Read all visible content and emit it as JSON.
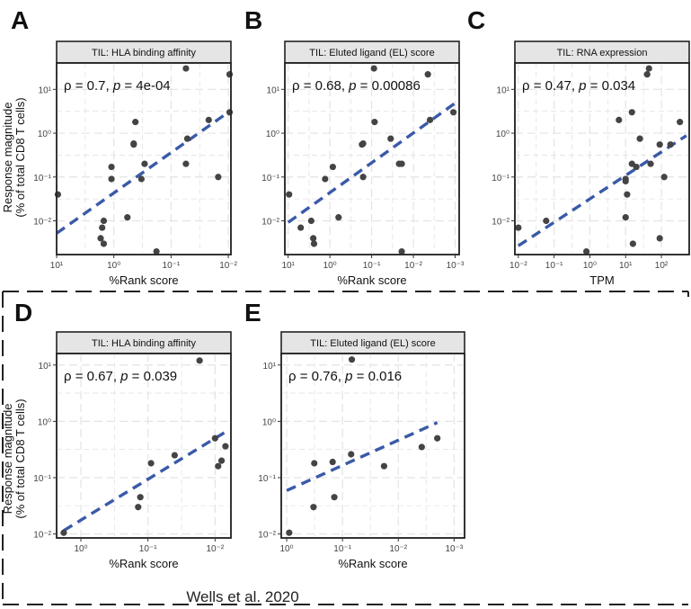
{
  "figure": {
    "footer": "Wells et al. 2020",
    "ylabel_line1": "Response magnitude",
    "ylabel_line2": "(% of total CD8 T cells)"
  },
  "colors": {
    "points": "#444444",
    "trend": "#3a5aa8",
    "strip_fill": "#e5e5e5",
    "grid": "#e3e3e3",
    "box_dash": "#222222"
  },
  "chart_data": [
    {
      "id": "A",
      "letter": "A",
      "type": "scatter",
      "title": "TIL: HLA binding affinity",
      "xlabel": "%Rank score",
      "x_reversed": true,
      "x_log": true,
      "y_log": true,
      "xlim": [
        10.0,
        0.009
      ],
      "ylim": [
        0.0017,
        40
      ],
      "xticks": [
        10,
        1,
        0.1,
        0.01
      ],
      "xtick_labels": [
        "10¹",
        "10⁰",
        "10⁻¹",
        "10⁻²"
      ],
      "yticks": [
        0.01,
        0.1,
        1,
        10
      ],
      "ytick_labels": [
        "10⁻²",
        "10⁻¹",
        "10⁰",
        "10¹"
      ],
      "rho_text": "ρ = 0.7, ",
      "p_label": "p",
      "p_text": " = 4e-04",
      "fit": {
        "x": [
          10,
          0.01
        ],
        "y": [
          0.0052,
          3.0
        ]
      },
      "points": [
        {
          "x": 9.5,
          "y": 0.04
        },
        {
          "x": 1.1,
          "y": 0.17
        },
        {
          "x": 1.1,
          "y": 0.09
        },
        {
          "x": 1.7,
          "y": 0.004
        },
        {
          "x": 1.6,
          "y": 0.007
        },
        {
          "x": 1.5,
          "y": 0.01
        },
        {
          "x": 1.5,
          "y": 0.003
        },
        {
          "x": 0.58,
          "y": 0.012
        },
        {
          "x": 0.45,
          "y": 0.55
        },
        {
          "x": 0.45,
          "y": 0.58
        },
        {
          "x": 0.42,
          "y": 1.8
        },
        {
          "x": 0.33,
          "y": 0.09
        },
        {
          "x": 0.29,
          "y": 0.2
        },
        {
          "x": 0.18,
          "y": 0.002
        },
        {
          "x": 0.055,
          "y": 30
        },
        {
          "x": 0.055,
          "y": 0.2
        },
        {
          "x": 0.052,
          "y": 0.75
        },
        {
          "x": 0.022,
          "y": 2.0
        },
        {
          "x": 0.015,
          "y": 0.1
        },
        {
          "x": 0.0095,
          "y": 22
        },
        {
          "x": 0.0095,
          "y": 3.0
        }
      ]
    },
    {
      "id": "B",
      "letter": "B",
      "type": "scatter",
      "title": "TIL: Eluted ligand (EL) score",
      "xlabel": "%Rank score",
      "x_reversed": true,
      "x_log": true,
      "y_log": true,
      "xlim": [
        12,
        0.0008
      ],
      "ylim": [
        0.0017,
        40
      ],
      "xticks": [
        10,
        1,
        0.1,
        0.01,
        0.001
      ],
      "xtick_labels": [
        "10¹",
        "10⁰",
        "10⁻¹",
        "10⁻²",
        "10⁻³"
      ],
      "yticks": [
        0.01,
        0.1,
        1,
        10
      ],
      "ytick_labels": [
        "10⁻²",
        "10⁻¹",
        "10⁰",
        "10¹"
      ],
      "rho_text": "ρ = 0.68, ",
      "p_label": "p",
      "p_text": " = 0.00086",
      "fit": {
        "x": [
          10,
          0.0009
        ],
        "y": [
          0.0092,
          5.2
        ]
      },
      "points": [
        {
          "x": 9.5,
          "y": 0.04
        },
        {
          "x": 5.0,
          "y": 0.007
        },
        {
          "x": 2.8,
          "y": 0.01
        },
        {
          "x": 2.5,
          "y": 0.004
        },
        {
          "x": 2.4,
          "y": 0.003
        },
        {
          "x": 1.3,
          "y": 0.09
        },
        {
          "x": 0.85,
          "y": 0.17
        },
        {
          "x": 0.62,
          "y": 0.012
        },
        {
          "x": 0.17,
          "y": 0.55
        },
        {
          "x": 0.16,
          "y": 0.58
        },
        {
          "x": 0.16,
          "y": 0.1
        },
        {
          "x": 0.088,
          "y": 30
        },
        {
          "x": 0.085,
          "y": 1.8
        },
        {
          "x": 0.035,
          "y": 0.75
        },
        {
          "x": 0.022,
          "y": 0.2
        },
        {
          "x": 0.019,
          "y": 0.2
        },
        {
          "x": 0.019,
          "y": 0.002
        },
        {
          "x": 0.0045,
          "y": 22
        },
        {
          "x": 0.004,
          "y": 2.0
        },
        {
          "x": 0.0011,
          "y": 3.0
        }
      ]
    },
    {
      "id": "C",
      "letter": "C",
      "type": "scatter",
      "title": "TIL: RNA expression",
      "xlabel": "TPM",
      "x_reversed": false,
      "x_log": true,
      "y_log": true,
      "xlim": [
        0.008,
        600
      ],
      "ylim": [
        0.0017,
        40
      ],
      "xticks": [
        0.01,
        0.1,
        1,
        10,
        100
      ],
      "xtick_labels": [
        "10⁻²",
        "10⁻¹",
        "10⁰",
        "10¹",
        "10²"
      ],
      "yticks": [
        0.01,
        0.1,
        1,
        10
      ],
      "ytick_labels": [
        "10⁻²",
        "10⁻¹",
        "10⁰",
        "10¹"
      ],
      "rho_text": "ρ = 0.47, ",
      "p_label": "p",
      "p_text": " = 0.034",
      "fit": {
        "x": [
          0.01,
          500
        ],
        "y": [
          0.0027,
          0.88
        ]
      },
      "points": [
        {
          "x": 0.01,
          "y": 0.007
        },
        {
          "x": 0.06,
          "y": 0.01
        },
        {
          "x": 0.8,
          "y": 0.002
        },
        {
          "x": 6.5,
          "y": 2.0
        },
        {
          "x": 10,
          "y": 0.09
        },
        {
          "x": 10,
          "y": 0.08
        },
        {
          "x": 10,
          "y": 0.012
        },
        {
          "x": 11,
          "y": 0.04
        },
        {
          "x": 15,
          "y": 0.2
        },
        {
          "x": 15,
          "y": 3.0
        },
        {
          "x": 16,
          "y": 0.003
        },
        {
          "x": 20,
          "y": 0.17
        },
        {
          "x": 25,
          "y": 0.75
        },
        {
          "x": 40,
          "y": 22
        },
        {
          "x": 45,
          "y": 30
        },
        {
          "x": 50,
          "y": 0.2
        },
        {
          "x": 90,
          "y": 0.55
        },
        {
          "x": 90,
          "y": 0.004
        },
        {
          "x": 120,
          "y": 0.1
        },
        {
          "x": 180,
          "y": 0.55
        },
        {
          "x": 330,
          "y": 1.8
        }
      ]
    },
    {
      "id": "D",
      "letter": "D",
      "type": "scatter",
      "title": "TIL: HLA binding affinity",
      "xlabel": "%Rank score",
      "x_reversed": true,
      "x_log": true,
      "y_log": true,
      "xlim": [
        2.3,
        0.0058
      ],
      "ylim": [
        0.0085,
        16
      ],
      "xticks": [
        1,
        0.1,
        0.01
      ],
      "xtick_labels": [
        "10⁰",
        "10⁻¹",
        "10⁻²"
      ],
      "yticks": [
        0.01,
        0.1,
        1,
        10
      ],
      "ytick_labels": [
        "10⁻²",
        "10⁻¹",
        "10⁰",
        "10¹"
      ],
      "rho_text": "ρ = 0.67, ",
      "p_label": "p",
      "p_text": " = 0.039",
      "fit": {
        "x": [
          1.8,
          0.0068
        ],
        "y": [
          0.0115,
          0.66
        ]
      },
      "points": [
        {
          "x": 1.8,
          "y": 0.0105
        },
        {
          "x": 0.14,
          "y": 0.03
        },
        {
          "x": 0.13,
          "y": 0.045
        },
        {
          "x": 0.09,
          "y": 0.18
        },
        {
          "x": 0.04,
          "y": 0.25
        },
        {
          "x": 0.017,
          "y": 12
        },
        {
          "x": 0.01,
          "y": 0.5
        },
        {
          "x": 0.009,
          "y": 0.16
        },
        {
          "x": 0.008,
          "y": 0.2
        },
        {
          "x": 0.007,
          "y": 0.36
        }
      ]
    },
    {
      "id": "E",
      "letter": "E",
      "type": "scatter",
      "title": "TIL: Eluted ligand (EL) score",
      "xlabel": "%Rank score",
      "x_reversed": true,
      "x_log": true,
      "y_log": true,
      "xlim": [
        1.25,
        0.00065
      ],
      "ylim": [
        0.0085,
        16
      ],
      "xticks": [
        1,
        0.1,
        0.01,
        0.001
      ],
      "xtick_labels": [
        "10⁰",
        "10⁻¹",
        "10⁻²",
        "10⁻³"
      ],
      "yticks": [
        0.01,
        0.1,
        1,
        10
      ],
      "ytick_labels": [
        "10⁻²",
        "10⁻¹",
        "10⁰",
        "10¹"
      ],
      "rho_text": "ρ = 0.76, ",
      "p_label": "p",
      "p_text": " = 0.016",
      "fit": {
        "x": [
          1.0,
          0.002
        ],
        "y": [
          0.059,
          0.95
        ]
      },
      "points": [
        {
          "x": 0.9,
          "y": 0.0105
        },
        {
          "x": 0.33,
          "y": 0.03
        },
        {
          "x": 0.32,
          "y": 0.18
        },
        {
          "x": 0.15,
          "y": 0.19
        },
        {
          "x": 0.14,
          "y": 0.045
        },
        {
          "x": 0.07,
          "y": 0.26
        },
        {
          "x": 0.068,
          "y": 12.5
        },
        {
          "x": 0.018,
          "y": 0.16
        },
        {
          "x": 0.0038,
          "y": 0.35
        },
        {
          "x": 0.002,
          "y": 0.5
        }
      ]
    }
  ]
}
